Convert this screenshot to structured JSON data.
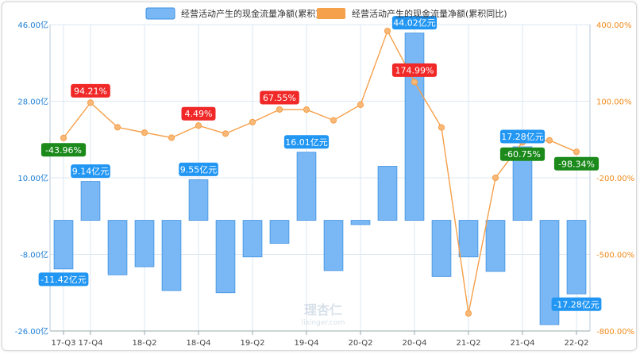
{
  "chart_data": {
    "type": "bar",
    "categories": [
      "17-Q3",
      "17-Q4",
      "18-Q1",
      "18-Q2",
      "18-Q3",
      "18-Q4",
      "19-Q1",
      "19-Q2",
      "19-Q3",
      "19-Q4",
      "20-Q1",
      "20-Q2",
      "20-Q3",
      "20-Q4",
      "21-Q1",
      "21-Q2",
      "21-Q3",
      "21-Q4",
      "22-Q1",
      "22-Q2"
    ],
    "x_tick_labels": [
      "17-Q3",
      "17-Q4",
      "18-Q2",
      "18-Q4",
      "19-Q2",
      "19-Q4",
      "20-Q2",
      "20-Q4",
      "21-Q2",
      "21-Q4",
      "22-Q2"
    ],
    "series": [
      {
        "name": "经营活动产生的现金流量净额(累积)",
        "type": "bar",
        "axis": "left",
        "unit": "亿元",
        "values": [
          -11.42,
          9.14,
          -12.8,
          -10.9,
          -16.5,
          9.55,
          -17.0,
          -8.6,
          -5.4,
          16.01,
          -11.8,
          -1.0,
          12.7,
          44.02,
          -13.2,
          -8.6,
          -12.0,
          17.28,
          -24.5,
          -17.28
        ]
      },
      {
        "name": "经营活动产生的现金流量净额(累积同比)",
        "type": "line",
        "axis": "right",
        "unit": "%",
        "values": [
          -43.96,
          94.21,
          -2.0,
          -23.0,
          -43.0,
          4.49,
          -27.0,
          18.0,
          67.55,
          67.0,
          25.0,
          86.0,
          375.0,
          174.99,
          -3.0,
          -731.0,
          -200.0,
          -60.75,
          -53.0,
          -98.34
        ]
      }
    ],
    "y_left": {
      "ticks": [
        "46.00亿",
        "28.00亿",
        "10.00亿",
        "-8.00亿",
        "-26.00亿"
      ],
      "ylim": [
        -26,
        46
      ],
      "unit": "亿"
    },
    "y_right": {
      "ticks": [
        "400.00%",
        "100.00%",
        "-200.00%",
        "-500.00%",
        "-800.00%"
      ],
      "ylim": [
        -800,
        400
      ],
      "unit": "%"
    },
    "bar_labels": [
      {
        "index": 0,
        "text": "-11.42亿元"
      },
      {
        "index": 1,
        "text": "9.14亿元"
      },
      {
        "index": 5,
        "text": "9.55亿元"
      },
      {
        "index": 9,
        "text": "16.01亿元"
      },
      {
        "index": 13,
        "text": "44.02亿元"
      },
      {
        "index": 17,
        "text": "17.28亿元"
      },
      {
        "index": 19,
        "text": "-17.28亿元"
      }
    ],
    "line_labels": [
      {
        "index": 0,
        "text": "-43.96%"
      },
      {
        "index": 1,
        "text": "94.21%"
      },
      {
        "index": 5,
        "text": "4.49%"
      },
      {
        "index": 8,
        "text": "67.55%"
      },
      {
        "index": 13,
        "text": "174.99%"
      },
      {
        "index": 17,
        "text": "-60.75%"
      },
      {
        "index": 19,
        "text": "-98.34%"
      }
    ],
    "legend_position": "top-center",
    "grid": true
  },
  "colors": {
    "bar_fill": "#7ab8f5",
    "bar_stroke": "#3d8fe0",
    "line": "#f5a04a",
    "marker": "#f8b878",
    "left_axis_text": "#1f7fd6",
    "right_axis_text": "#f08a1a",
    "label_blue": "#2196f3",
    "label_red": "#f02828",
    "label_green": "#1b8a1b",
    "grid": "#dbe7f3",
    "tick_text": "#444444"
  },
  "watermark": {
    "title": "理杏仁",
    "subtitle": "lixinger.com"
  }
}
